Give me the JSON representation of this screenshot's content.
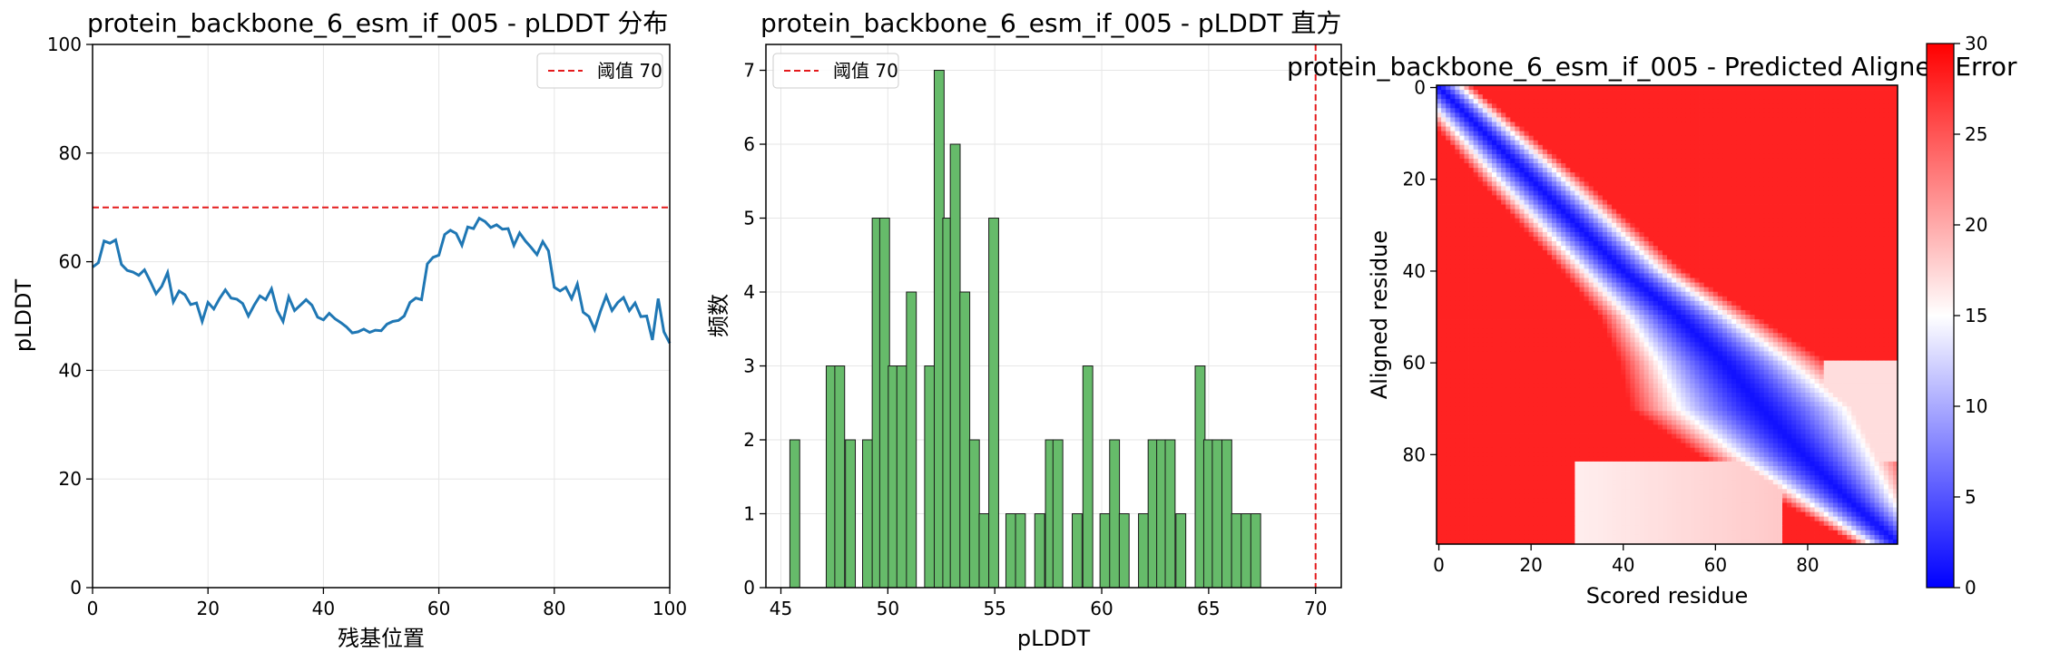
{
  "chart_data": [
    {
      "type": "line",
      "title": "protein_backbone_6_esm_if_005 - pLDDT 分布",
      "xlabel": "残基位置",
      "ylabel": "pLDDT",
      "xlim": [
        0,
        100
      ],
      "ylim": [
        0,
        100
      ],
      "xticks": [
        "0",
        "20",
        "40",
        "60",
        "80",
        "100"
      ],
      "yticks": [
        "0",
        "20",
        "40",
        "60",
        "80",
        "100"
      ],
      "grid": true,
      "legend": {
        "placement": "top-right",
        "entries": [
          "阈值 70"
        ]
      },
      "threshold": {
        "name": "阈值 70",
        "value": 70,
        "color": "#e41a1c"
      },
      "series": [
        {
          "color": "#1f77b4",
          "x": [
            0,
            1,
            2,
            3,
            4,
            5,
            6,
            7,
            8,
            9,
            10,
            11,
            12,
            13,
            14,
            15,
            16,
            17,
            18,
            19,
            20,
            21,
            22,
            23,
            24,
            25,
            26,
            27,
            28,
            29,
            30,
            31,
            32,
            33,
            34,
            35,
            36,
            37,
            38,
            39,
            40,
            41,
            42,
            43,
            44,
            45,
            46,
            47,
            48,
            49,
            50,
            51,
            52,
            53,
            54,
            55,
            56,
            57,
            58,
            59,
            60,
            61,
            62,
            63,
            64,
            65,
            66,
            67,
            68,
            69,
            70,
            71,
            72,
            73,
            74,
            75,
            76,
            77,
            78,
            79,
            80,
            81,
            82,
            83,
            84,
            85,
            86,
            87,
            88,
            89,
            90,
            91,
            92,
            93,
            94,
            95,
            96,
            97,
            98,
            99,
            100
          ],
          "values": [
            59.0,
            59.8,
            63.8,
            63.4,
            64.0,
            59.5,
            58.4,
            58.1,
            57.5,
            58.5,
            56.4,
            54.1,
            55.5,
            58.0,
            52.6,
            54.6,
            53.9,
            52.1,
            52.4,
            49.0,
            52.5,
            51.3,
            53.2,
            54.8,
            53.3,
            53.1,
            52.3,
            50.0,
            52.0,
            53.7,
            53.0,
            55.0,
            51.0,
            49.0,
            53.5,
            51.0,
            52.0,
            53.0,
            52.0,
            49.8,
            49.3,
            50.5,
            49.5,
            48.8,
            48.0,
            46.9,
            47.1,
            47.6,
            47.0,
            47.4,
            47.3,
            48.5,
            49.0,
            49.2,
            50.0,
            52.5,
            53.3,
            53.0,
            59.6,
            60.8,
            61.2,
            65.0,
            65.8,
            65.2,
            63.0,
            66.4,
            66.1,
            68.0,
            67.4,
            66.3,
            66.8,
            66.0,
            66.1,
            63.0,
            65.3,
            63.8,
            62.6,
            61.3,
            63.7,
            62.0,
            55.3,
            54.6,
            55.3,
            53.2,
            55.9,
            50.7,
            49.9,
            47.5,
            50.9,
            53.7,
            51.0,
            52.5,
            53.4,
            51.0,
            52.4,
            49.9,
            50.0,
            45.6,
            53.2,
            47.1,
            45.0
          ]
        }
      ]
    },
    {
      "type": "bar",
      "title": "protein_backbone_6_esm_if_005 - pLDDT 直方",
      "xlabel": "pLDDT",
      "ylabel": "频数",
      "xlim": [
        44.3,
        71.2
      ],
      "ylim": [
        0,
        7.35
      ],
      "xticks": [
        "45",
        "50",
        "55",
        "60",
        "65",
        "70"
      ],
      "yticks": [
        "0",
        "1",
        "2",
        "3",
        "4",
        "5",
        "6",
        "7"
      ],
      "grid": true,
      "legend": {
        "placement": "top-left",
        "entries": [
          "阈值 70"
        ]
      },
      "threshold": {
        "name": "阈值 70",
        "value": 70,
        "color": "#e41a1c"
      },
      "bar_color": "#66bb6a",
      "bin_width": 0.46,
      "bins": [
        {
          "x": 45.65,
          "count": 2
        },
        {
          "x": 47.35,
          "count": 3
        },
        {
          "x": 47.75,
          "count": 3
        },
        {
          "x": 48.25,
          "count": 2
        },
        {
          "x": 49.05,
          "count": 2
        },
        {
          "x": 49.5,
          "count": 5
        },
        {
          "x": 49.85,
          "count": 5
        },
        {
          "x": 50.25,
          "count": 3
        },
        {
          "x": 50.65,
          "count": 3
        },
        {
          "x": 51.1,
          "count": 4
        },
        {
          "x": 51.95,
          "count": 3
        },
        {
          "x": 52.4,
          "count": 7
        },
        {
          "x": 52.8,
          "count": 5
        },
        {
          "x": 53.15,
          "count": 6
        },
        {
          "x": 53.6,
          "count": 4
        },
        {
          "x": 54.05,
          "count": 2
        },
        {
          "x": 54.5,
          "count": 1
        },
        {
          "x": 54.95,
          "count": 5
        },
        {
          "x": 55.75,
          "count": 1
        },
        {
          "x": 56.2,
          "count": 1
        },
        {
          "x": 57.1,
          "count": 1
        },
        {
          "x": 57.6,
          "count": 2
        },
        {
          "x": 57.95,
          "count": 2
        },
        {
          "x": 58.85,
          "count": 1
        },
        {
          "x": 59.35,
          "count": 3
        },
        {
          "x": 60.15,
          "count": 1
        },
        {
          "x": 60.6,
          "count": 2
        },
        {
          "x": 61.05,
          "count": 1
        },
        {
          "x": 61.95,
          "count": 1
        },
        {
          "x": 62.4,
          "count": 2
        },
        {
          "x": 62.8,
          "count": 2
        },
        {
          "x": 63.2,
          "count": 2
        },
        {
          "x": 63.7,
          "count": 1
        },
        {
          "x": 64.6,
          "count": 3
        },
        {
          "x": 65.0,
          "count": 2
        },
        {
          "x": 65.4,
          "count": 2
        },
        {
          "x": 65.85,
          "count": 2
        },
        {
          "x": 66.3,
          "count": 1
        },
        {
          "x": 66.75,
          "count": 1
        },
        {
          "x": 67.2,
          "count": 1
        }
      ]
    },
    {
      "type": "heatmap",
      "title": "protein_backbone_6_esm_if_005 - Predicted Aligned Error",
      "xlabel": "Scored residue",
      "ylabel": "Aligned residue",
      "xlim": [
        0,
        100
      ],
      "ylim": [
        0,
        100
      ],
      "xticks": [
        "0",
        "20",
        "40",
        "60",
        "80"
      ],
      "yticks": [
        "0",
        "20",
        "40",
        "60",
        "80"
      ],
      "grid": false,
      "colormap": "bwr",
      "colormap_stops": [
        "#0000ff",
        "#ffffff",
        "#ff0000"
      ],
      "color_range": [
        0,
        30
      ],
      "colorbar_ticks": [
        "0",
        "5",
        "10",
        "15",
        "20",
        "25",
        "30"
      ],
      "size": 100,
      "diagonal_band": [
        {
          "residue": 0,
          "center": 0,
          "halfwidth": 4
        },
        {
          "residue": 20,
          "center": 20,
          "halfwidth": 6
        },
        {
          "residue": 40,
          "center": 40,
          "halfwidth": 7
        },
        {
          "residue": 50,
          "center": 52,
          "halfwidth": 9
        },
        {
          "residue": 60,
          "center": 62,
          "halfwidth": 12
        },
        {
          "residue": 70,
          "center": 70,
          "halfwidth": 15
        },
        {
          "residue": 80,
          "center": 79,
          "halfwidth": 12
        },
        {
          "residue": 90,
          "center": 89,
          "halfwidth": 8
        },
        {
          "residue": 99,
          "center": 99,
          "halfwidth": 5
        }
      ]
    }
  ]
}
